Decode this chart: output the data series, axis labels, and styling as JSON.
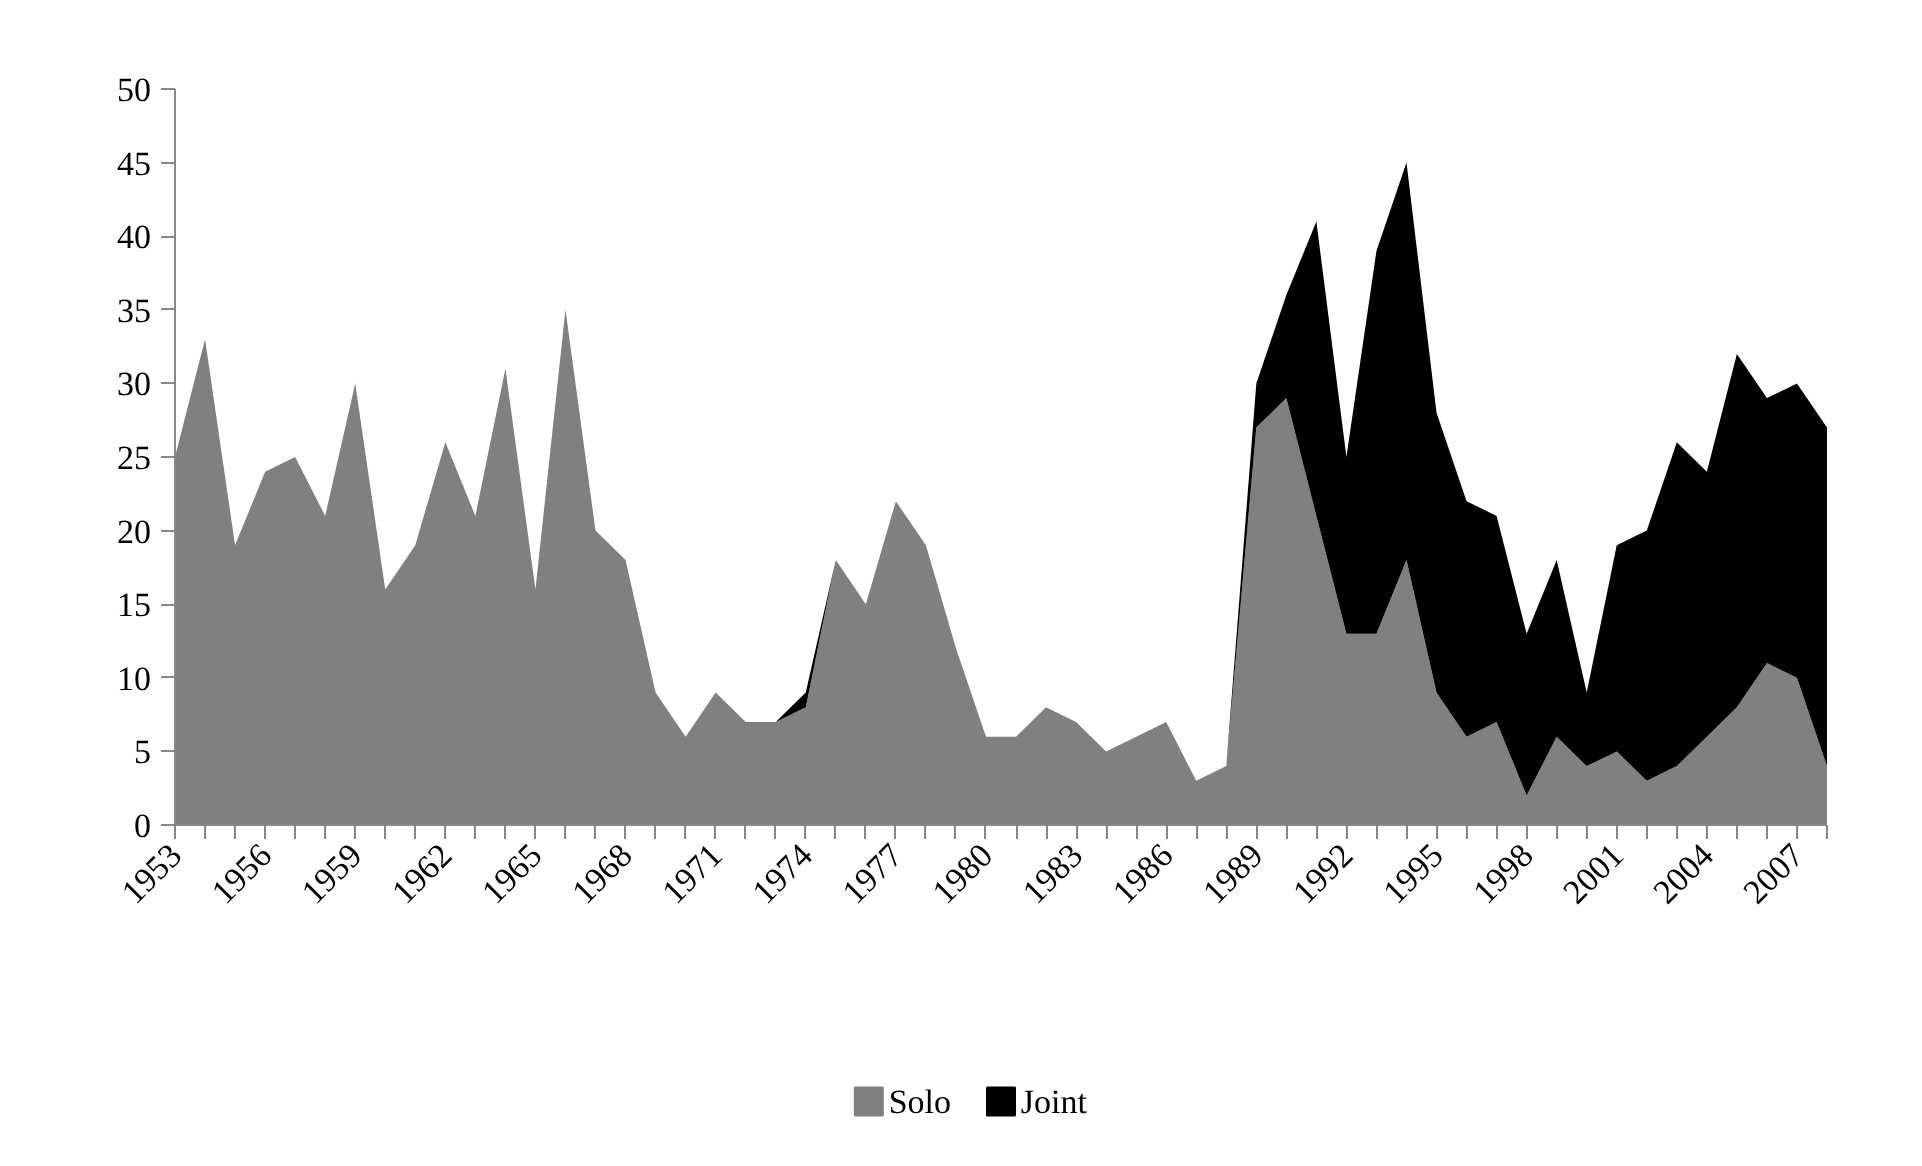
{
  "chart_data": {
    "type": "area",
    "stacked": true,
    "categories": [
      "1953",
      null,
      null,
      "1956",
      null,
      null,
      "1959",
      null,
      null,
      "1962",
      null,
      null,
      "1965",
      null,
      null,
      "1968",
      null,
      null,
      "1971",
      null,
      null,
      "1974",
      null,
      null,
      "1977",
      null,
      null,
      "1980",
      null,
      null,
      "1983",
      null,
      null,
      "1986",
      null,
      null,
      "1989",
      null,
      null,
      "1992",
      null,
      null,
      "1995",
      null,
      null,
      "1998",
      null,
      null,
      "2001",
      null,
      null,
      "2004",
      null,
      null,
      "2007",
      null
    ],
    "series": [
      {
        "name": "Solo",
        "color": "#808080",
        "values": [
          25,
          33,
          19,
          24,
          25,
          21,
          30,
          16,
          19,
          26,
          21,
          31,
          16,
          35,
          20,
          18,
          9,
          6,
          9,
          7,
          7,
          8,
          18,
          15,
          22,
          19,
          12,
          6,
          6,
          8,
          7,
          5,
          6,
          7,
          3,
          4,
          27,
          29,
          21,
          13,
          13,
          18,
          9,
          6,
          7,
          2,
          6,
          4,
          5,
          3,
          4,
          6,
          8,
          11,
          10,
          4
        ]
      },
      {
        "name": "Joint",
        "color": "#000000",
        "values": [
          0,
          0,
          0,
          0,
          0,
          0,
          0,
          0,
          0,
          0,
          0,
          0,
          0,
          0,
          0,
          0,
          0,
          0,
          0,
          0,
          0,
          1,
          0,
          0,
          0,
          0,
          0,
          0,
          0,
          0,
          0,
          0,
          0,
          0,
          0,
          0,
          3,
          7,
          20,
          12,
          26,
          27,
          19,
          16,
          14,
          11,
          12,
          5,
          14,
          17,
          22,
          18,
          24,
          18,
          20,
          23
        ]
      }
    ],
    "ylim": [
      0,
      50
    ],
    "yticks": [
      0,
      5,
      10,
      15,
      20,
      25,
      30,
      35,
      40,
      45,
      50
    ],
    "grid": false,
    "legend": "bottom"
  }
}
